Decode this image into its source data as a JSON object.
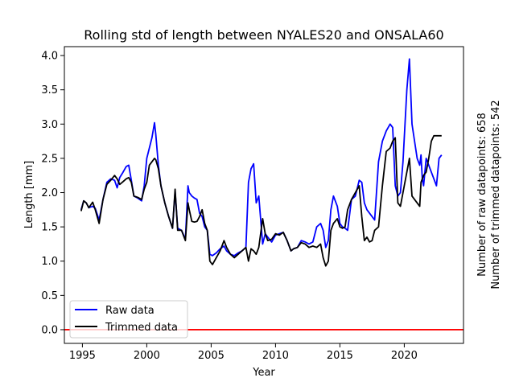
{
  "chart_data": {
    "type": "line",
    "title": "Rolling std of length between NYALES20 and ONSALA60",
    "xlabel": "Year",
    "ylabel": "Length [mm]",
    "xlim": [
      1993.6,
      2024.6
    ],
    "ylim": [
      -0.2,
      4.13
    ],
    "xticks": [
      1995,
      2000,
      2005,
      2010,
      2015,
      2020
    ],
    "yticks": [
      0.0,
      0.5,
      1.0,
      1.5,
      2.0,
      2.5,
      3.0,
      3.5,
      4.0
    ],
    "ytick_labels": [
      "0.0",
      "0.5",
      "1.0",
      "1.5",
      "2.0",
      "2.5",
      "3.0",
      "3.5",
      "4.0"
    ],
    "grid": false,
    "legend_position": "lower-left",
    "reference_line": {
      "y": 0.0,
      "color": "#ff0000"
    },
    "side_annotations": [
      "Number of raw datapoints: 658",
      "Number of trimmed datapoints: 542"
    ],
    "series": [
      {
        "name": "Raw data",
        "color": "#0000ff",
        "x": [
          1994.9,
          1995.1,
          1995.3,
          1995.5,
          1995.8,
          1996.0,
          1996.3,
          1996.6,
          1996.9,
          1997.2,
          1997.5,
          1997.7,
          1997.9,
          1998.1,
          1998.4,
          1998.6,
          1998.8,
          1999.0,
          1999.3,
          1999.6,
          1999.8,
          2000.0,
          2000.2,
          2000.4,
          2000.6,
          2000.7,
          2000.9,
          2001.1,
          2001.4,
          2001.7,
          2002.0,
          2002.2,
          2002.4,
          2002.7,
          2003.0,
          2003.2,
          2003.3,
          2003.5,
          2003.7,
          2003.9,
          2004.1,
          2004.3,
          2004.5,
          2004.7,
          2004.9,
          2005.1,
          2005.4,
          2005.7,
          2006.0,
          2006.2,
          2006.5,
          2006.8,
          2007.1,
          2007.4,
          2007.7,
          2007.9,
          2008.1,
          2008.3,
          2008.5,
          2008.7,
          2009.0,
          2009.2,
          2009.4,
          2009.7,
          2010.0,
          2010.3,
          2010.6,
          2010.9,
          2011.2,
          2011.4,
          2011.7,
          2012.0,
          2012.3,
          2012.6,
          2012.9,
          2013.2,
          2013.5,
          2013.7,
          2013.9,
          2014.1,
          2014.3,
          2014.5,
          2014.8,
          2015.0,
          2015.2,
          2015.4,
          2015.6,
          2015.9,
          2016.2,
          2016.5,
          2016.7,
          2016.9,
          2017.1,
          2017.3,
          2017.5,
          2017.7,
          2018.0,
          2018.3,
          2018.6,
          2018.9,
          2019.1,
          2019.3,
          2019.5,
          2019.7,
          2019.9,
          2020.0,
          2020.2,
          2020.4,
          2020.6,
          2020.8,
          2021.0,
          2021.2,
          2021.3,
          2021.4,
          2021.5,
          2021.7,
          2021.9,
          2022.1,
          2022.3,
          2022.5,
          2022.7,
          2022.9
        ],
        "y": [
          1.75,
          1.88,
          1.85,
          1.78,
          1.8,
          1.77,
          1.6,
          1.9,
          2.15,
          2.2,
          2.18,
          2.07,
          2.22,
          2.28,
          2.38,
          2.4,
          2.18,
          1.95,
          1.92,
          1.88,
          2.1,
          2.5,
          2.65,
          2.8,
          3.02,
          2.85,
          2.4,
          2.1,
          1.85,
          1.65,
          1.48,
          2.02,
          1.48,
          1.45,
          1.32,
          2.1,
          2.0,
          1.95,
          1.92,
          1.9,
          1.7,
          1.65,
          1.5,
          1.45,
          1.1,
          1.08,
          1.12,
          1.18,
          1.22,
          1.15,
          1.1,
          1.08,
          1.12,
          1.15,
          1.2,
          2.15,
          2.35,
          2.42,
          1.85,
          1.95,
          1.25,
          1.4,
          1.35,
          1.28,
          1.38,
          1.4,
          1.42,
          1.3,
          1.15,
          1.18,
          1.2,
          1.3,
          1.28,
          1.25,
          1.28,
          1.5,
          1.55,
          1.45,
          1.2,
          1.3,
          1.75,
          1.95,
          1.8,
          1.55,
          1.5,
          1.48,
          1.45,
          1.9,
          1.95,
          2.18,
          2.15,
          1.85,
          1.75,
          1.7,
          1.65,
          1.6,
          2.45,
          2.75,
          2.9,
          3.0,
          2.95,
          2.1,
          1.95,
          2.0,
          2.45,
          2.8,
          3.5,
          3.95,
          3.0,
          2.75,
          2.5,
          2.4,
          2.55,
          2.2,
          2.1,
          2.5,
          2.4,
          2.3,
          2.2,
          2.1,
          2.5,
          2.55
        ],
        "x_note": "",
        "y_note": ""
      },
      {
        "name": "Trimmed data",
        "color": "#000000",
        "x": [
          1994.9,
          1995.1,
          1995.3,
          1995.5,
          1995.8,
          1996.0,
          1996.3,
          1996.6,
          1996.9,
          1997.2,
          1997.5,
          1997.7,
          1997.9,
          1998.1,
          1998.4,
          1998.6,
          1998.8,
          1999.0,
          1999.3,
          1999.6,
          1999.8,
          2000.0,
          2000.2,
          2000.4,
          2000.6,
          2000.7,
          2000.9,
          2001.1,
          2001.4,
          2001.7,
          2002.0,
          2002.2,
          2002.4,
          2002.7,
          2003.0,
          2003.2,
          2003.3,
          2003.5,
          2003.7,
          2003.9,
          2004.1,
          2004.3,
          2004.5,
          2004.7,
          2004.9,
          2005.1,
          2005.4,
          2005.7,
          2006.0,
          2006.2,
          2006.5,
          2006.8,
          2007.1,
          2007.4,
          2007.7,
          2007.9,
          2008.1,
          2008.3,
          2008.5,
          2008.7,
          2009.0,
          2009.2,
          2009.4,
          2009.7,
          2010.0,
          2010.3,
          2010.6,
          2010.9,
          2011.2,
          2011.4,
          2011.7,
          2012.0,
          2012.3,
          2012.6,
          2012.9,
          2013.2,
          2013.5,
          2013.7,
          2013.9,
          2014.1,
          2014.3,
          2014.5,
          2014.8,
          2015.0,
          2015.2,
          2015.4,
          2015.6,
          2015.9,
          2016.2,
          2016.5,
          2016.7,
          2016.9,
          2017.1,
          2017.3,
          2017.5,
          2017.7,
          2018.0,
          2018.3,
          2018.6,
          2018.9,
          2019.1,
          2019.3,
          2019.5,
          2019.7,
          2019.9,
          2020.0,
          2020.2,
          2020.4,
          2020.6,
          2020.8,
          2021.0,
          2021.2,
          2021.3,
          2021.4,
          2021.5,
          2021.7,
          2021.9,
          2022.1,
          2022.3,
          2022.5,
          2022.7,
          2022.9
        ],
        "y": [
          1.73,
          1.88,
          1.85,
          1.78,
          1.86,
          1.75,
          1.55,
          1.9,
          2.12,
          2.18,
          2.25,
          2.2,
          2.12,
          2.15,
          2.2,
          2.22,
          2.15,
          1.95,
          1.93,
          1.9,
          2.05,
          2.15,
          2.4,
          2.45,
          2.5,
          2.48,
          2.35,
          2.1,
          1.85,
          1.65,
          1.48,
          2.05,
          1.45,
          1.45,
          1.3,
          1.85,
          1.75,
          1.58,
          1.57,
          1.58,
          1.65,
          1.75,
          1.55,
          1.45,
          1.0,
          0.95,
          1.05,
          1.15,
          1.3,
          1.2,
          1.1,
          1.05,
          1.1,
          1.15,
          1.2,
          1.0,
          1.18,
          1.15,
          1.1,
          1.2,
          1.62,
          1.4,
          1.3,
          1.32,
          1.4,
          1.38,
          1.42,
          1.3,
          1.15,
          1.18,
          1.2,
          1.27,
          1.25,
          1.2,
          1.22,
          1.2,
          1.25,
          1.05,
          0.93,
          1.0,
          1.45,
          1.55,
          1.62,
          1.5,
          1.48,
          1.5,
          1.75,
          1.9,
          2.0,
          2.1,
          1.65,
          1.3,
          1.35,
          1.28,
          1.3,
          1.45,
          1.5,
          2.1,
          2.6,
          2.65,
          2.75,
          2.8,
          1.85,
          1.8,
          2.0,
          2.1,
          2.3,
          2.5,
          1.95,
          1.9,
          1.85,
          1.8,
          2.15,
          2.2,
          2.25,
          2.3,
          2.5,
          2.75,
          2.83,
          2.83,
          2.83,
          2.83
        ]
      }
    ]
  }
}
